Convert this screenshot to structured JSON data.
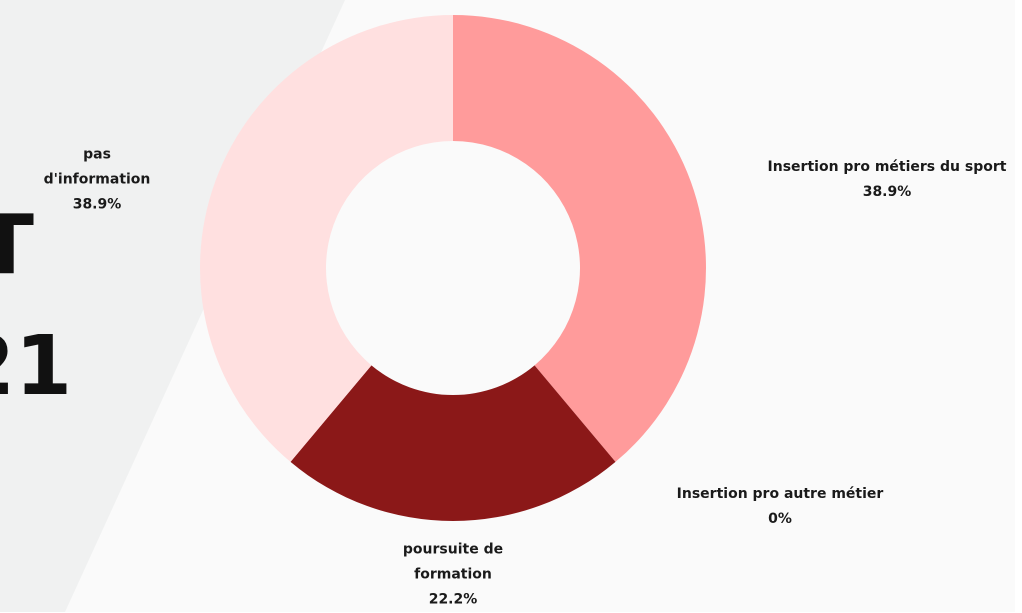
{
  "background_text": [
    "T",
    "21"
  ],
  "chart_data": {
    "type": "donut",
    "categories": [
      "Insertion pro métiers du sport",
      "Insertion pro autre métier",
      "poursuite de formation",
      "pas d'information"
    ],
    "values": [
      38.9,
      0,
      22.2,
      38.9
    ],
    "value_labels": [
      "38.9%",
      "0%",
      "22.2%",
      "38.9%"
    ],
    "colors": [
      "#ff9b9b",
      "#c04040",
      "#8b1818",
      "#ffe0e0"
    ]
  }
}
